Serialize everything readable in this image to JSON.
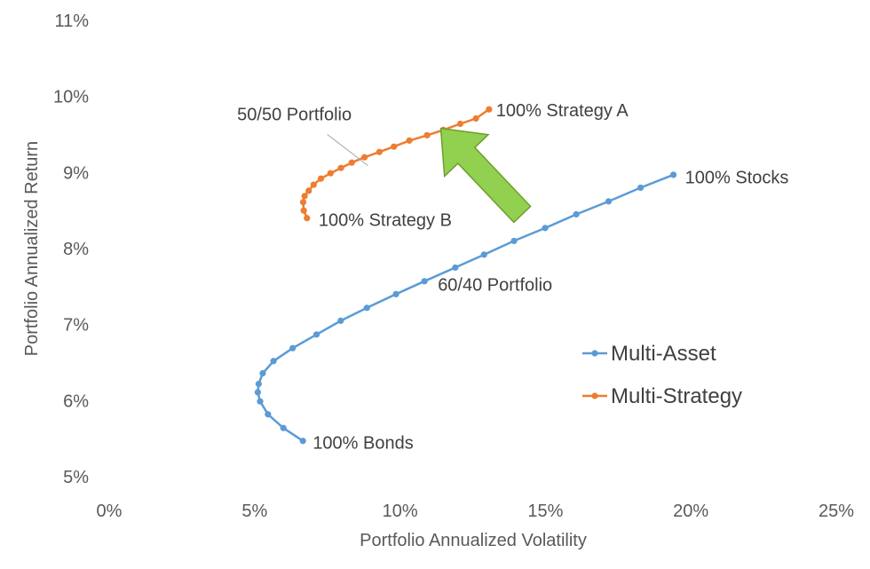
{
  "chart_data": {
    "type": "line",
    "xlabel": "Portfolio Annualized Volatility",
    "ylabel": "Portfolio Annualized Return",
    "xlim": [
      0,
      25
    ],
    "ylim": [
      5,
      11
    ],
    "x_ticks": [
      {
        "value": 0,
        "label": "0%"
      },
      {
        "value": 5,
        "label": "5%"
      },
      {
        "value": 10,
        "label": "10%"
      },
      {
        "value": 15,
        "label": "15%"
      },
      {
        "value": 20,
        "label": "20%"
      },
      {
        "value": 25,
        "label": "25%"
      }
    ],
    "y_ticks": [
      {
        "value": 5,
        "label": "5%"
      },
      {
        "value": 6,
        "label": "6%"
      },
      {
        "value": 7,
        "label": "7%"
      },
      {
        "value": 8,
        "label": "8%"
      },
      {
        "value": 9,
        "label": "9%"
      },
      {
        "value": 10,
        "label": "10%"
      },
      {
        "value": 11,
        "label": "11%"
      }
    ],
    "grid": false,
    "legend_position": "right",
    "series": [
      {
        "name": "Multi-Asset",
        "color": "#5B9BD5",
        "x": [
          6.66,
          5.99,
          5.46,
          5.19,
          5.11,
          5.14,
          5.28,
          5.65,
          6.31,
          7.13,
          7.96,
          8.86,
          9.86,
          10.84,
          11.9,
          12.89,
          13.92,
          14.99,
          16.06,
          17.17,
          18.27,
          19.4
        ],
        "y": [
          5.47,
          5.64,
          5.82,
          5.99,
          6.11,
          6.22,
          6.36,
          6.52,
          6.69,
          6.87,
          7.05,
          7.22,
          7.4,
          7.57,
          7.75,
          7.92,
          8.1,
          8.27,
          8.45,
          8.62,
          8.8,
          8.97
        ]
      },
      {
        "name": "Multi-Strategy",
        "color": "#ED7D31",
        "x": [
          6.8,
          6.69,
          6.67,
          6.72,
          6.86,
          7.03,
          7.28,
          7.61,
          7.97,
          8.34,
          8.78,
          9.29,
          9.79,
          10.32,
          10.93,
          11.49,
          12.07,
          12.61,
          13.06
        ],
        "y": [
          8.4,
          8.5,
          8.61,
          8.69,
          8.76,
          8.84,
          8.92,
          8.99,
          9.06,
          9.13,
          9.2,
          9.27,
          9.34,
          9.42,
          9.49,
          9.56,
          9.64,
          9.71,
          9.83
        ]
      }
    ],
    "annotations": [
      {
        "text": "100% Strategy A",
        "x": 13.3,
        "y": 9.82
      },
      {
        "text": "50/50 Portfolio",
        "x": 4.4,
        "y": 9.77
      },
      {
        "text": "100% Strategy B",
        "x": 7.2,
        "y": 8.38
      },
      {
        "text": "100% Stocks",
        "x": 19.8,
        "y": 8.94
      },
      {
        "text": "60/40 Portfolio",
        "x": 11.3,
        "y": 7.53
      },
      {
        "text": "100% Bonds",
        "x": 7.0,
        "y": 5.45
      }
    ],
    "callout_line": {
      "from": {
        "x": 7.5,
        "y": 9.5
      },
      "to": {
        "x": 8.9,
        "y": 9.09
      }
    },
    "arrow": {
      "color": "#92D050",
      "outline": "#6E9E2F",
      "from": {
        "x": 14.2,
        "y": 8.45
      },
      "to": {
        "x": 11.4,
        "y": 9.58
      }
    }
  }
}
